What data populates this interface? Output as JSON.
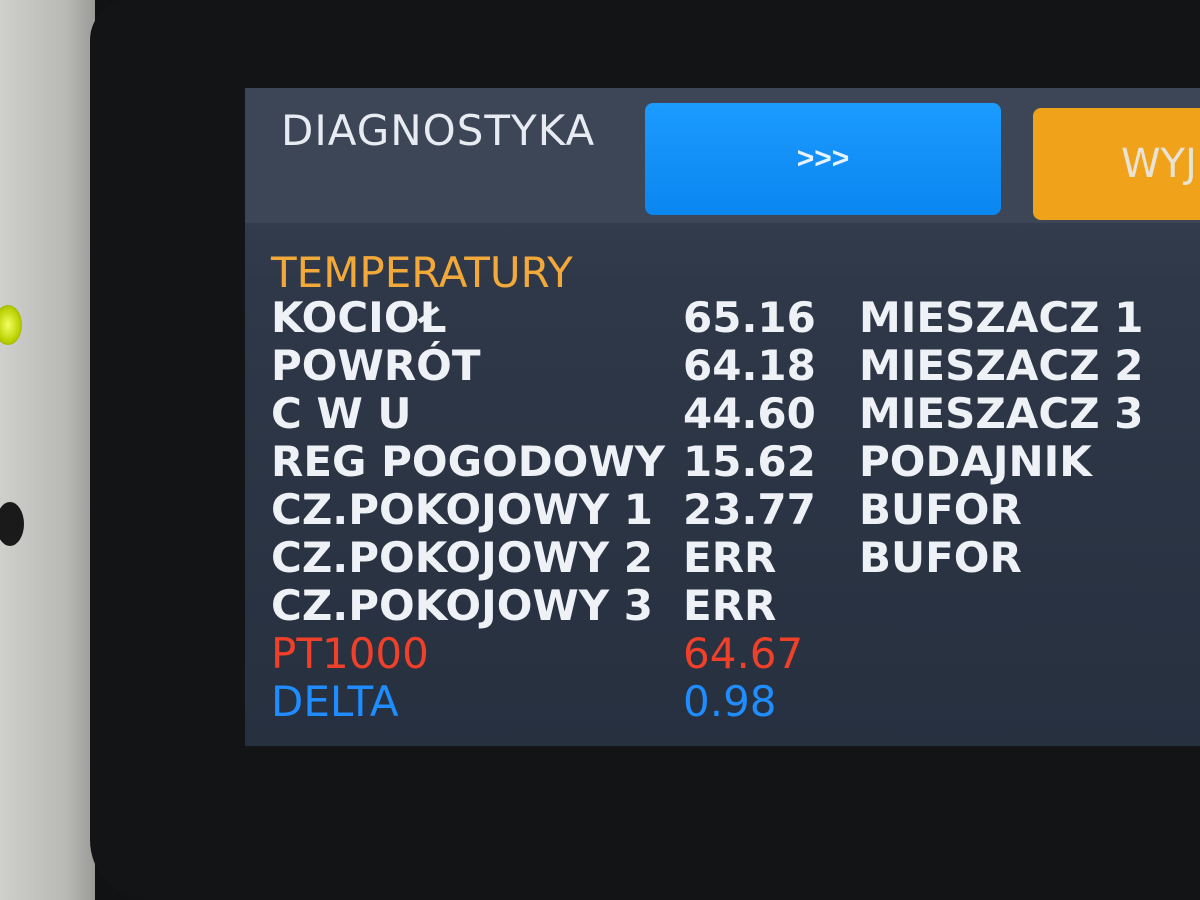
{
  "header": {
    "title": "DIAGNOSTYKA",
    "next_label": ">>>",
    "exit_label": "WYJ"
  },
  "section_title": "TEMPERATURY",
  "temperatures": [
    {
      "label": "KOCIOŁ",
      "value": "65.16"
    },
    {
      "label": "POWRÓT",
      "value": "64.18"
    },
    {
      "label": "C W U",
      "value": "44.60"
    },
    {
      "label": "REG POGODOWY",
      "value": "15.62"
    },
    {
      "label": "CZ.POKOJOWY 1",
      "value": "23.77"
    },
    {
      "label": "CZ.POKOJOWY 2",
      "value": "ERR"
    },
    {
      "label": "CZ.POKOJOWY 3",
      "value": "ERR"
    },
    {
      "label": "PT1000",
      "value": "64.67"
    },
    {
      "label": "DELTA",
      "value": "0.98"
    }
  ],
  "right_column": [
    "MIESZACZ 1",
    "MIESZACZ 2",
    "MIESZACZ 3",
    "PODAJNIK",
    "BUFOR",
    "BUFOR"
  ],
  "colors": {
    "section": "#f2a93a",
    "pt1000": "#f0402a",
    "delta": "#1f8dff",
    "next_button": "#0a86f0",
    "exit_button": "#f0a21a"
  }
}
